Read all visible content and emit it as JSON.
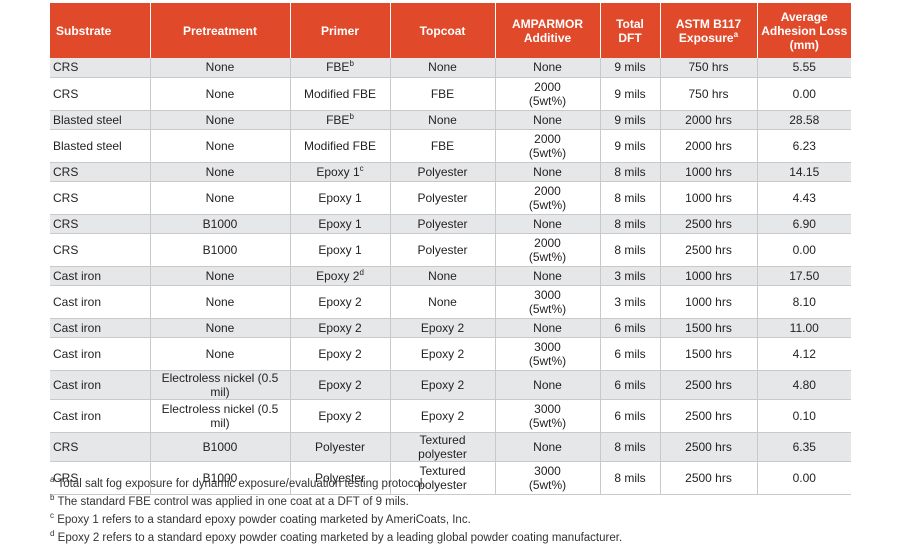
{
  "table": {
    "headers": [
      "Substrate",
      "Pretreatment",
      "Primer",
      "Topcoat",
      [
        "AMPARMOR",
        "Additive"
      ],
      [
        "Total",
        "DFT"
      ],
      {
        "lines": [
          "ASTM B117",
          "Exposure"
        ],
        "sup": "a"
      },
      [
        "Average",
        "Adhesion Loss",
        "(mm)"
      ]
    ],
    "rows": [
      [
        "CRS",
        "None",
        {
          "text": "FBE",
          "sup": "b"
        },
        "None",
        "None",
        "9 mils",
        "750 hrs",
        "5.55"
      ],
      [
        "CRS",
        "None",
        "Modified FBE",
        "FBE",
        [
          "2000",
          "(5wt%)"
        ],
        "9 mils",
        "750 hrs",
        "0.00"
      ],
      [
        "Blasted steel",
        "None",
        {
          "text": "FBE",
          "sup": "b"
        },
        "None",
        "None",
        "9 mils",
        "2000 hrs",
        "28.58"
      ],
      [
        "Blasted steel",
        "None",
        "Modified FBE",
        "FBE",
        [
          "2000",
          "(5wt%)"
        ],
        "9 mils",
        "2000 hrs",
        "6.23"
      ],
      [
        "CRS",
        "None",
        {
          "text": "Epoxy 1",
          "sup": "c"
        },
        "Polyester",
        "None",
        "8 mils",
        "1000 hrs",
        "14.15"
      ],
      [
        "CRS",
        "None",
        "Epoxy 1",
        "Polyester",
        [
          "2000",
          "(5wt%)"
        ],
        "8 mils",
        "1000 hrs",
        "4.43"
      ],
      [
        "CRS",
        "B1000",
        "Epoxy 1",
        "Polyester",
        "None",
        "8 mils",
        "2500 hrs",
        "6.90"
      ],
      [
        "CRS",
        "B1000",
        "Epoxy 1",
        "Polyester",
        [
          "2000",
          "(5wt%)"
        ],
        "8 mils",
        "2500 hrs",
        "0.00"
      ],
      [
        "Cast iron",
        "None",
        {
          "text": "Epoxy 2",
          "sup": "d"
        },
        "None",
        "None",
        "3 mils",
        "1000 hrs",
        "17.50"
      ],
      [
        "Cast iron",
        "None",
        "Epoxy 2",
        "None",
        [
          "3000",
          "(5wt%)"
        ],
        "3 mils",
        "1000 hrs",
        "8.10"
      ],
      [
        "Cast iron",
        "None",
        "Epoxy 2",
        "Epoxy 2",
        "None",
        "6 mils",
        "1500 hrs",
        "11.00"
      ],
      [
        "Cast iron",
        "None",
        "Epoxy 2",
        "Epoxy 2",
        [
          "3000",
          "(5wt%)"
        ],
        "6 mils",
        "1500 hrs",
        "4.12"
      ],
      [
        "Cast iron",
        "Electroless nickel (0.5 mil)",
        "Epoxy 2",
        "Epoxy 2",
        "None",
        "6 mils",
        "2500 hrs",
        "4.80"
      ],
      [
        "Cast iron",
        "Electroless nickel (0.5 mil)",
        "Epoxy 2",
        "Epoxy 2",
        [
          "3000",
          "(5wt%)"
        ],
        "6 mils",
        "2500 hrs",
        "0.10"
      ],
      [
        "CRS",
        "B1000",
        "Polyester",
        "Textured polyester",
        "None",
        "8 mils",
        "2500 hrs",
        "6.35"
      ],
      [
        "CRS",
        "B1000",
        "Polyester",
        "Textured polyester",
        [
          "3000",
          "(5wt%)"
        ],
        "8 mils",
        "2500 hrs",
        "0.00"
      ]
    ]
  },
  "footnotes": [
    {
      "mark": "a",
      "text": "Total salt fog exposure for dynamic exposure/evaluation testing protocol."
    },
    {
      "mark": "b",
      "text": "The standard FBE control was applied in one coat at a DFT of 9 mils."
    },
    {
      "mark": "c",
      "text": "Epoxy 1 refers to a standard epoxy powder coating marketed by AmeriCoats, Inc."
    },
    {
      "mark": "d",
      "text": "Epoxy 2 refers to a standard epoxy powder coating marketed by a leading global powder coating manufacturer."
    }
  ]
}
